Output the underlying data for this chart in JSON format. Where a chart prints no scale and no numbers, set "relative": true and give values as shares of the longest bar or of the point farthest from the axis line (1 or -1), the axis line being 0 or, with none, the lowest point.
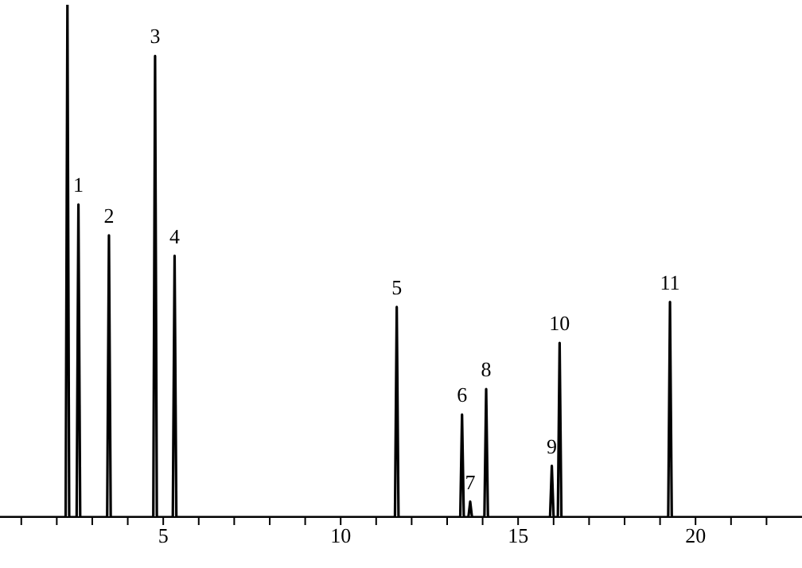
{
  "chart_data": {
    "type": "line",
    "relative": true,
    "series": [
      {
        "color": "#000000",
        "x": [
          0.4,
          2.25,
          2.3,
          2.35,
          2.56,
          2.61,
          2.66,
          3.42,
          3.47,
          3.52,
          4.72,
          4.77,
          4.82,
          5.27,
          5.32,
          5.37,
          11.53,
          11.58,
          11.63,
          13.37,
          13.42,
          13.47,
          13.6,
          13.65,
          13.7,
          14.05,
          14.1,
          14.15,
          15.9,
          15.95,
          16.0,
          16.12,
          16.17,
          16.22,
          19.23,
          19.28,
          19.33,
          23
        ],
        "values": [
          0,
          0,
          1,
          0,
          0,
          0.61,
          0,
          0,
          0.55,
          0,
          0,
          0.9,
          0,
          0,
          0.51,
          0,
          0,
          0.41,
          0,
          0,
          0.2,
          0,
          0,
          0.03,
          0,
          0,
          0.25,
          0,
          0,
          0.1,
          0,
          0,
          0.34,
          0,
          0,
          0.42,
          0,
          0
        ]
      }
    ],
    "xlim": [
      0.4,
      23
    ],
    "xticks": [
      {
        "value": 1,
        "label": null
      },
      {
        "value": 2,
        "label": null
      },
      {
        "value": 3,
        "label": null
      },
      {
        "value": 4,
        "label": null
      },
      5,
      {
        "value": 6,
        "label": null
      },
      {
        "value": 7,
        "label": null
      },
      {
        "value": 8,
        "label": null
      },
      {
        "value": 9,
        "label": null
      },
      10,
      {
        "value": 11,
        "label": null
      },
      {
        "value": 12,
        "label": null
      },
      {
        "value": 13,
        "label": null
      },
      {
        "value": 14,
        "label": null
      },
      15,
      {
        "value": 16,
        "label": null
      },
      {
        "value": 17,
        "label": null
      },
      {
        "value": 18,
        "label": null
      },
      {
        "value": 19,
        "label": null
      },
      20,
      {
        "value": 21,
        "label": null
      },
      {
        "value": 22,
        "label": null
      }
    ],
    "annotations": [
      {
        "text": "1",
        "x": 2.61,
        "y": 0.61
      },
      {
        "text": "2",
        "x": 3.47,
        "y": 0.55
      },
      {
        "text": "3",
        "x": 4.77,
        "y": 0.9
      },
      {
        "text": "4",
        "x": 5.32,
        "y": 0.51
      },
      {
        "text": "5",
        "x": 11.58,
        "y": 0.41
      },
      {
        "text": "6",
        "x": 13.42,
        "y": 0.2
      },
      {
        "text": "7",
        "x": 13.65,
        "y": 0.03
      },
      {
        "text": "8",
        "x": 14.1,
        "y": 0.25
      },
      {
        "text": "9",
        "x": 15.95,
        "y": 0.1
      },
      {
        "text": "10",
        "x": 16.17,
        "y": 0.34
      },
      {
        "text": "11",
        "x": 19.28,
        "y": 0.42
      }
    ],
    "grid": false,
    "legend": false,
    "marker": "none",
    "line_style": "solid"
  }
}
